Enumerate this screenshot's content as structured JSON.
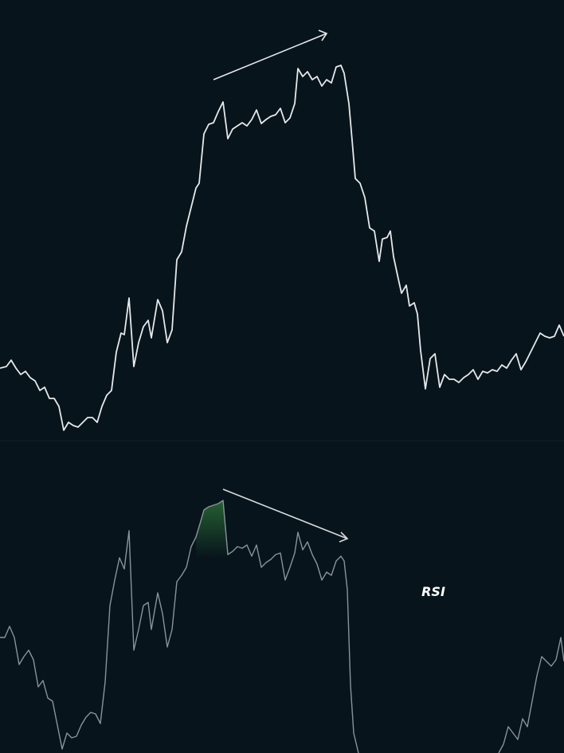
{
  "chart_data": [
    {
      "type": "line",
      "color": "#e6e8ea",
      "xlim": [
        0,
        708
      ],
      "ylim": [
        0,
        555
      ],
      "x": [
        0,
        8,
        14,
        20,
        26,
        32,
        38,
        44,
        50,
        56,
        62,
        68,
        74,
        80,
        86,
        92,
        98,
        104,
        110,
        116,
        122,
        128,
        134,
        140,
        146,
        152,
        156,
        162,
        168,
        174,
        180,
        186,
        190,
        198,
        204,
        210,
        216,
        222,
        228,
        234,
        240,
        246,
        250,
        256,
        262,
        268,
        274,
        280,
        286,
        292,
        298,
        304,
        310,
        316,
        322,
        328,
        334,
        340,
        346,
        352,
        358,
        364,
        370,
        374,
        380,
        386,
        392,
        398,
        404,
        410,
        416,
        422,
        428,
        432,
        438,
        442,
        446,
        452,
        458,
        464,
        470,
        476,
        480,
        486,
        490,
        494,
        500,
        504,
        510,
        514,
        520,
        524,
        528,
        534,
        540,
        546,
        552,
        558,
        564,
        570,
        576,
        582,
        588,
        594,
        600,
        606,
        612,
        618,
        624,
        630,
        636,
        642,
        648,
        654,
        660,
        666,
        672,
        678,
        684,
        690,
        696,
        702,
        708
      ],
      "values": [
        93,
        95,
        103,
        93,
        85,
        89,
        81,
        77,
        65,
        69,
        55,
        55,
        45,
        15,
        25,
        21,
        19,
        25,
        31,
        31,
        25,
        45,
        59,
        65,
        113,
        137,
        135,
        181,
        95,
        125,
        145,
        153,
        131,
        179,
        165,
        125,
        141,
        229,
        239,
        271,
        295,
        319,
        325,
        387,
        399,
        401,
        415,
        427,
        381,
        393,
        397,
        401,
        397,
        405,
        417,
        400,
        405,
        409,
        411,
        419,
        401,
        407,
        425,
        469,
        459,
        465,
        455,
        459,
        447,
        455,
        451,
        471,
        473,
        463,
        425,
        379,
        331,
        325,
        307,
        269,
        265,
        227,
        255,
        257,
        265,
        233,
        205,
        187,
        197,
        171,
        175,
        161,
        115,
        67,
        105,
        111,
        69,
        85,
        79,
        79,
        75,
        81,
        85,
        91,
        79,
        89,
        87,
        91,
        89,
        97,
        93,
        103,
        111,
        91,
        101,
        113,
        125,
        137,
        133,
        131,
        133,
        147,
        133
      ]
    },
    {
      "type": "line",
      "color": "#8a9399",
      "label": "RSI",
      "xlim": [
        0,
        708
      ],
      "ylim": [
        0,
        390
      ],
      "x": [
        0,
        6,
        12,
        18,
        24,
        30,
        36,
        42,
        48,
        54,
        60,
        66,
        72,
        78,
        84,
        90,
        96,
        102,
        108,
        114,
        120,
        126,
        132,
        138,
        144,
        150,
        156,
        162,
        168,
        174,
        180,
        186,
        190,
        198,
        204,
        210,
        216,
        222,
        228,
        234,
        240,
        246,
        252,
        256,
        262,
        268,
        274,
        280,
        286,
        292,
        298,
        304,
        310,
        316,
        322,
        328,
        334,
        340,
        346,
        352,
        358,
        364,
        370,
        374,
        380,
        386,
        392,
        398,
        404,
        410,
        416,
        422,
        428,
        432,
        436,
        440,
        444,
        450,
        540,
        626,
        632,
        638,
        644,
        650,
        656,
        662,
        668,
        674,
        680,
        686,
        692,
        698,
        704,
        708
      ],
      "values": [
        145,
        145,
        159,
        145,
        111,
        121,
        129,
        117,
        83,
        91,
        69,
        65,
        35,
        5,
        25,
        19,
        21,
        35,
        45,
        51,
        49,
        37,
        89,
        185,
        217,
        245,
        231,
        279,
        129,
        155,
        185,
        189,
        155,
        201,
        175,
        133,
        155,
        215,
        223,
        233,
        259,
        271,
        291,
        305,
        309,
        311,
        313,
        317,
        249,
        253,
        259,
        257,
        261,
        247,
        261,
        233,
        239,
        243,
        249,
        251,
        217,
        233,
        251,
        277,
        255,
        265,
        249,
        237,
        217,
        227,
        223,
        241,
        247,
        241,
        205,
        85,
        25,
        0,
        null,
        0,
        11,
        33,
        25,
        17,
        43,
        33,
        65,
        97,
        121,
        115,
        109,
        117,
        145,
        115
      ]
    }
  ]
}
